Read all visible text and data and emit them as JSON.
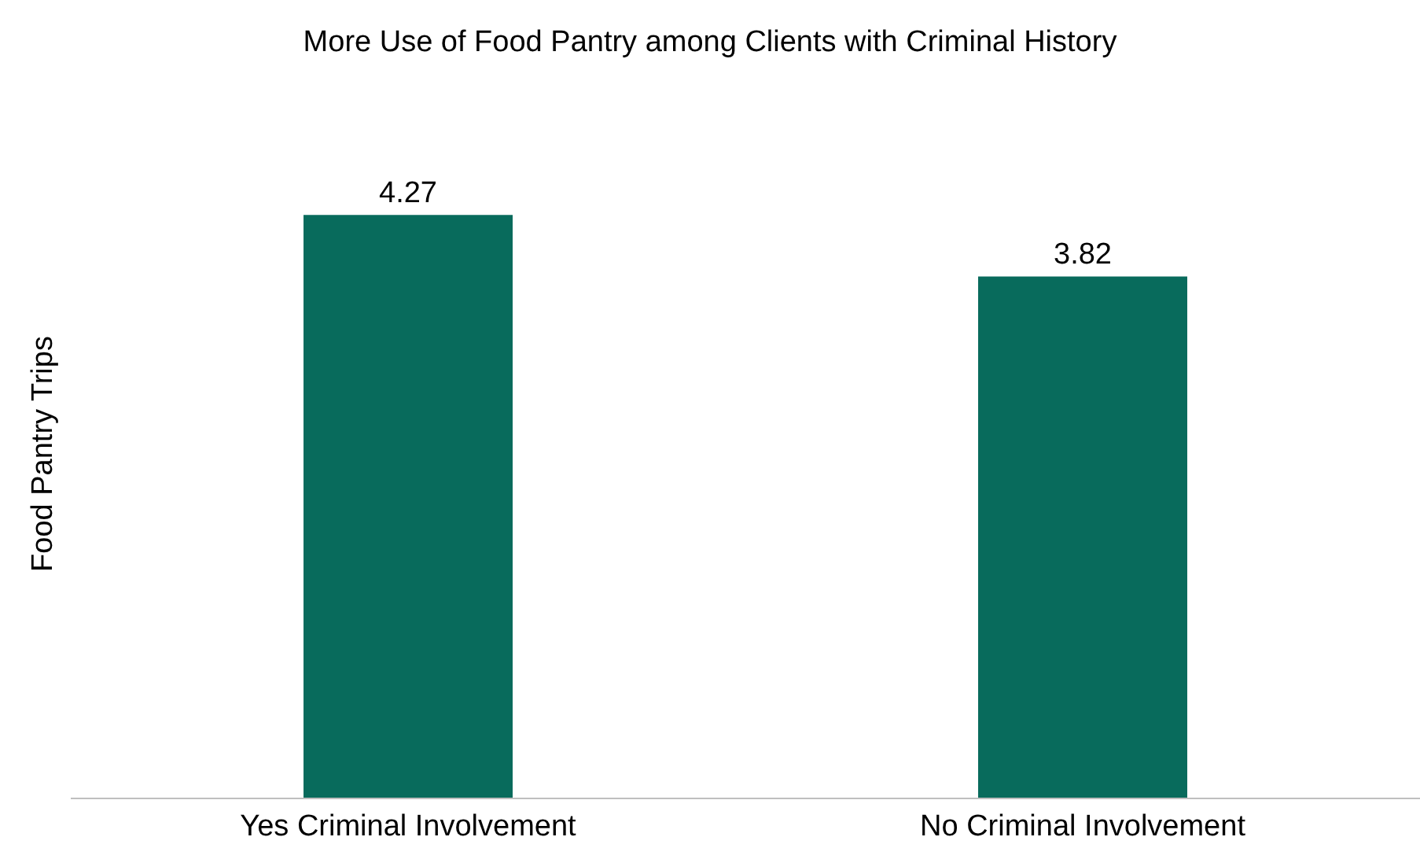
{
  "chart_data": {
    "type": "bar",
    "title": "More Use of Food Pantry among Clients with Criminal History",
    "ylabel": "Food Pantry Trips",
    "categories": [
      "Yes Criminal Involvement",
      "No Criminal Involvement"
    ],
    "values": [
      4.27,
      3.82
    ],
    "color": "#086b5c",
    "data_labels": true
  }
}
